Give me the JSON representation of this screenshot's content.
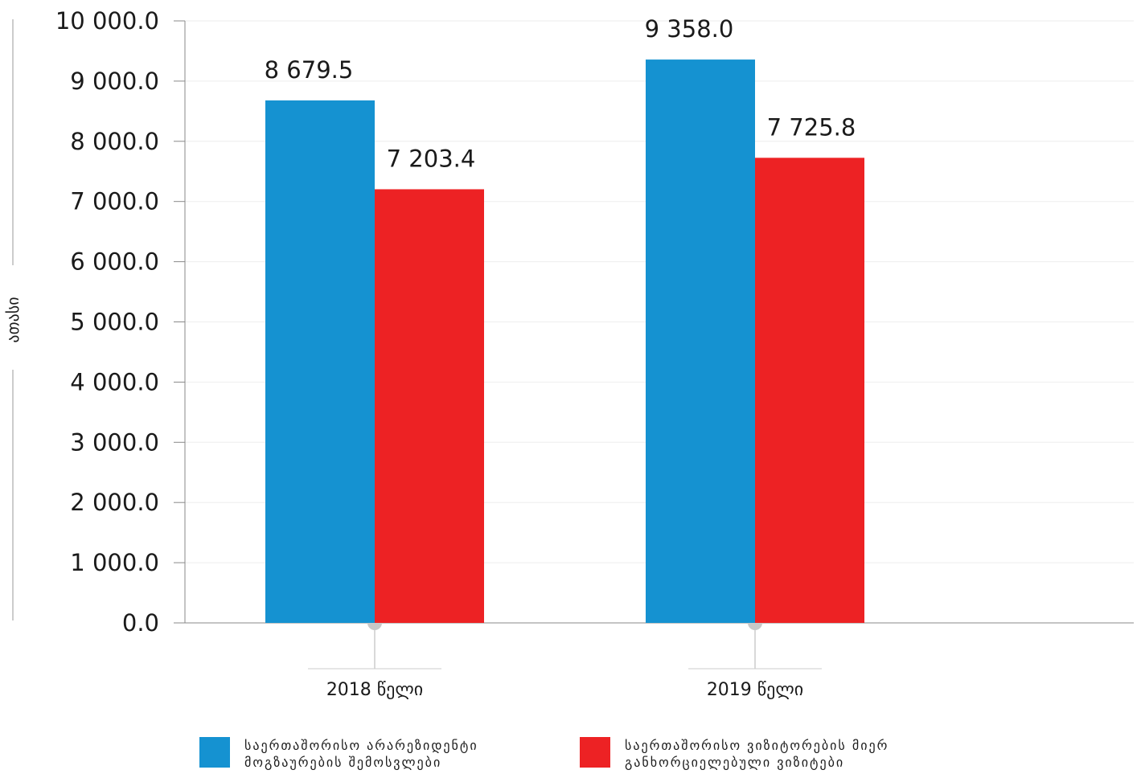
{
  "chart_data": {
    "type": "bar",
    "ylabel": "ათასი",
    "ylim": [
      0,
      10000
    ],
    "y_ticks": [
      "0.0",
      "1 000.0",
      "2 000.0",
      "3 000.0",
      "4 000.0",
      "5 000.0",
      "6 000.0",
      "7 000.0",
      "8 000.0",
      "9 000.0",
      "10 000.0"
    ],
    "y_tick_values": [
      0,
      1000,
      2000,
      3000,
      4000,
      5000,
      6000,
      7000,
      8000,
      9000,
      10000
    ],
    "categories": [
      "2018 წელი",
      "2019 წელი"
    ],
    "series": [
      {
        "name": "საერთაშორისო არარეზიდენტი მოგზაურების შემოსვლები",
        "color": "#1592d1",
        "values": [
          8679.5,
          9358.0
        ],
        "labels": [
          "8 679.5",
          "9 358.0"
        ]
      },
      {
        "name": "საერთაშორისო ვიზიტორების მიერ განხორციელებული ვიზიტები",
        "color": "#ed2224",
        "values": [
          7203.4,
          7725.8
        ],
        "labels": [
          "7 203.4",
          "7 725.8"
        ]
      }
    ],
    "grid": true,
    "legend_position": "bottom"
  }
}
